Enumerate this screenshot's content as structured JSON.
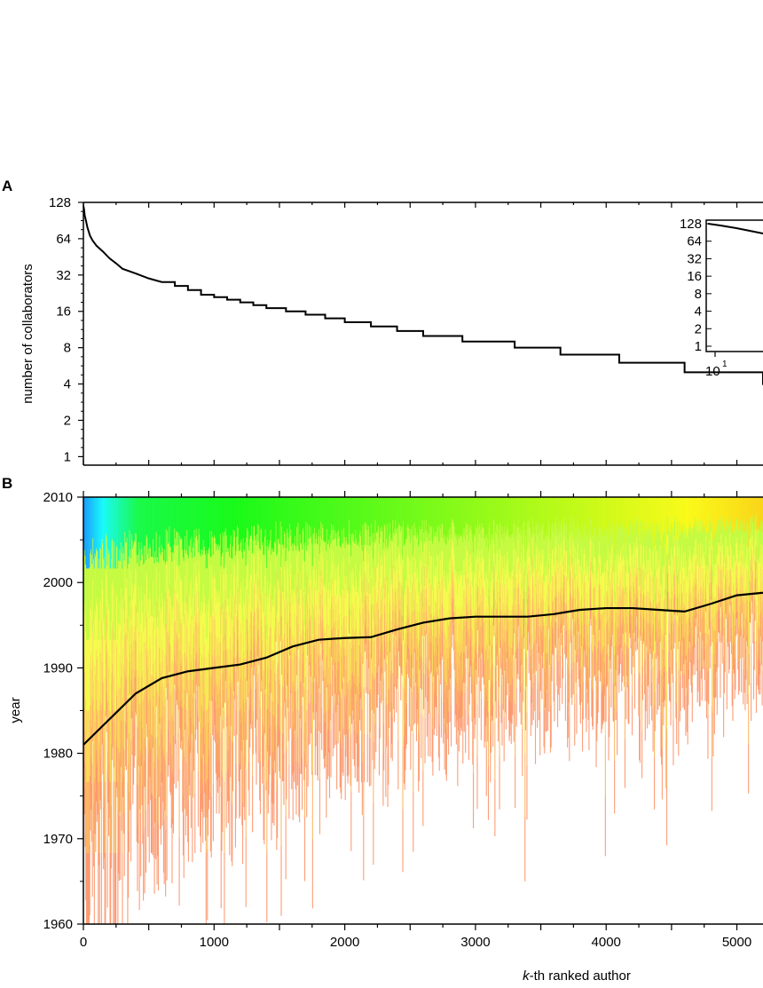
{
  "chart_data": [
    {
      "panel": "A",
      "type": "line",
      "ylabel": "number of collaborators",
      "y_scale": "log2",
      "xlim": [
        0,
        5200
      ],
      "ylim": [
        0.85,
        128
      ],
      "yticks": [
        "1",
        "2",
        "4",
        "8",
        "16",
        "32",
        "64",
        "128"
      ],
      "yticks_values": [
        1,
        2,
        4,
        8,
        16,
        32,
        64,
        128
      ],
      "x": [
        0,
        5,
        10,
        20,
        30,
        50,
        70,
        100,
        150,
        200,
        250,
        300,
        400,
        500,
        600,
        700,
        800,
        900,
        1000,
        1100,
        1200,
        1300,
        1400,
        1550,
        1700,
        1850,
        2000,
        2200,
        2400,
        2600,
        2900,
        3300,
        3650,
        4100,
        4600,
        5200
      ],
      "y": [
        120,
        112,
        100,
        90,
        80,
        68,
        62,
        56,
        50,
        44,
        40,
        36,
        33,
        30,
        28,
        26,
        24,
        22,
        21,
        20,
        19,
        18,
        17,
        16,
        15,
        14,
        13,
        12,
        11,
        10,
        9,
        8,
        7,
        6,
        5,
        4
      ],
      "step": true,
      "inset": {
        "type": "line",
        "x_scale": "log10",
        "y_scale": "log2",
        "yticks": [
          "1",
          "2",
          "4",
          "8",
          "16",
          "32",
          "64",
          "128"
        ],
        "xtick_base": "10",
        "xtick_exp": "1"
      }
    },
    {
      "panel": "B",
      "type": "line",
      "xlabel_italic": "k",
      "xlabel_rest": "-th ranked author",
      "ylabel": "year",
      "xlim": [
        0,
        5200
      ],
      "ylim": [
        1960,
        2010
      ],
      "xticks": [
        "0",
        "1000",
        "2000",
        "3000",
        "4000",
        "5000"
      ],
      "xticks_values": [
        0,
        1000,
        2000,
        3000,
        4000,
        5000
      ],
      "yticks": [
        "1960",
        "1970",
        "1980",
        "1990",
        "2000",
        "2010"
      ],
      "yticks_values": [
        1960,
        1970,
        1980,
        1990,
        2000,
        2010
      ],
      "series": [
        {
          "values_x": [
            0,
            200,
            400,
            600,
            800,
            1000,
            1200,
            1400,
            1600,
            1800,
            2000,
            2200,
            2400,
            2600,
            2800,
            3000,
            3200,
            3400,
            3600,
            3800,
            4000,
            4200,
            4400,
            4600,
            4800,
            5000,
            5200
          ],
          "values_y": [
            1981,
            1984,
            1987,
            1988.8,
            1989.6,
            1990,
            1990.4,
            1991.2,
            1992.5,
            1993.3,
            1993.5,
            1993.6,
            1994.5,
            1995.3,
            1995.8,
            1996,
            1996,
            1996,
            1996.3,
            1996.8,
            1997,
            1997,
            1996.8,
            1996.6,
            1997.5,
            1998.5,
            1998.8
          ]
        }
      ],
      "background": "per-author career spans colored from first-paper year (red) to 2010 (blue/green/yellow)"
    }
  ],
  "panel_labels": {
    "a": "A",
    "b": "B"
  }
}
